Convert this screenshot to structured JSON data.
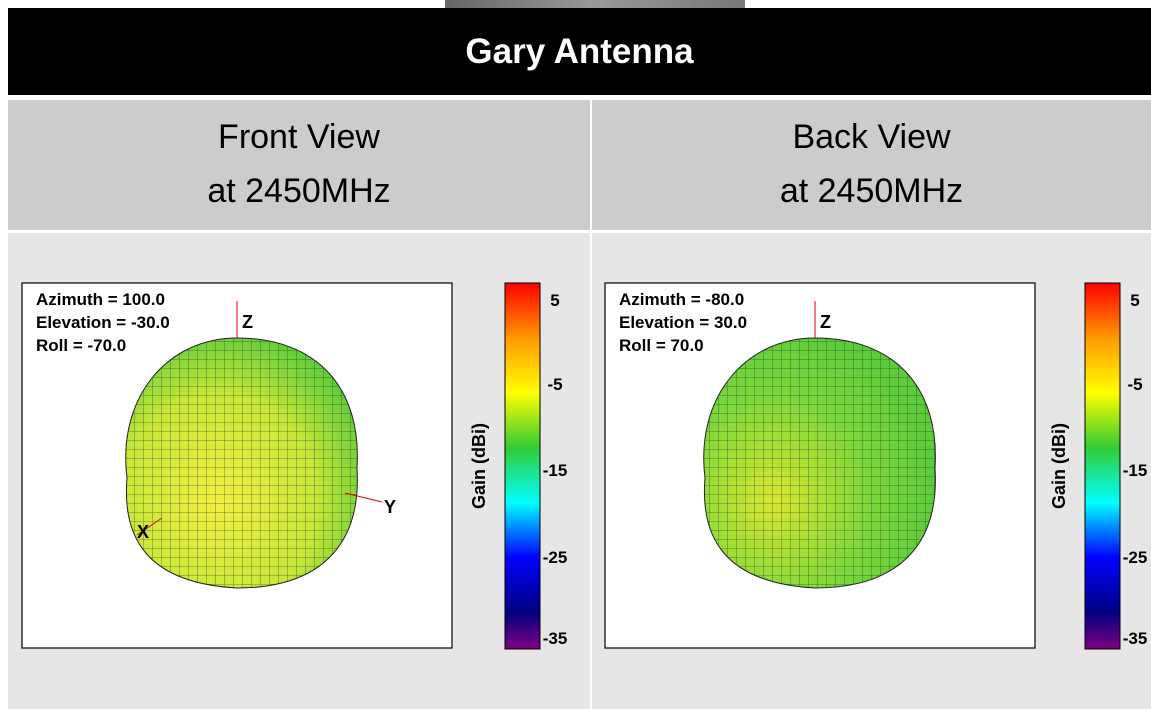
{
  "header": {
    "title": "Gary Antenna"
  },
  "panels": [
    {
      "heading": [
        "Front View",
        "at 2450MHz"
      ],
      "annotations": [
        "Azimuth = 100.0",
        "Elevation = -30.0",
        "Roll = -70.0"
      ],
      "axes": [
        "Z",
        "X",
        "Y"
      ],
      "colorbar": {
        "label": "Gain (dBi)",
        "ticks": [
          "5",
          "-5",
          "-15",
          "-25",
          "-35"
        ]
      }
    },
    {
      "heading": [
        "Back View",
        "at 2450MHz"
      ],
      "annotations": [
        "Azimuth = -80.0",
        "Elevation = 30.0",
        "Roll = 70.0"
      ],
      "axes": [
        "Z"
      ],
      "colorbar": {
        "label": "Gain (dBi)",
        "ticks": [
          "5",
          "-5",
          "-15",
          "-25",
          "-35"
        ]
      }
    }
  ]
}
